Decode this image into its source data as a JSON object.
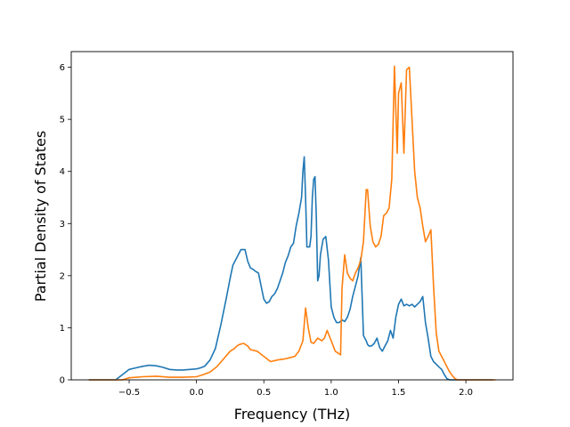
{
  "chart_data": {
    "type": "line",
    "title": "",
    "xlabel": "Frequency (THz)",
    "ylabel": "Partial Density of States",
    "xlim": [
      -0.93,
      2.35
    ],
    "ylim": [
      0,
      6.3
    ],
    "x_ticks": [
      -0.5,
      0.0,
      0.5,
      1.0,
      1.5,
      2.0
    ],
    "x_tick_labels": [
      "−0.5",
      "0.0",
      "0.5",
      "1.0",
      "1.5",
      "2.0"
    ],
    "y_ticks": [
      0,
      1,
      2,
      3,
      4,
      5,
      6
    ],
    "y_tick_labels": [
      "0",
      "1",
      "2",
      "3",
      "4",
      "5",
      "6"
    ],
    "grid": false,
    "legend": "none",
    "series": [
      {
        "color": "#1f77b4",
        "x": [
          -0.8,
          -0.6,
          -0.55,
          -0.5,
          -0.45,
          -0.4,
          -0.35,
          -0.3,
          -0.25,
          -0.2,
          -0.15,
          -0.1,
          -0.05,
          0.0,
          0.03,
          0.06,
          0.1,
          0.14,
          0.18,
          0.22,
          0.25,
          0.27,
          0.3,
          0.33,
          0.36,
          0.38,
          0.4,
          0.42,
          0.44,
          0.46,
          0.48,
          0.5,
          0.52,
          0.54,
          0.56,
          0.58,
          0.6,
          0.62,
          0.64,
          0.66,
          0.68,
          0.7,
          0.72,
          0.74,
          0.76,
          0.78,
          0.79,
          0.8,
          0.81,
          0.82,
          0.84,
          0.85,
          0.86,
          0.87,
          0.88,
          0.89,
          0.9,
          0.91,
          0.92,
          0.94,
          0.96,
          0.98,
          1.0,
          1.02,
          1.04,
          1.06,
          1.08,
          1.1,
          1.12,
          1.14,
          1.16,
          1.18,
          1.2,
          1.22,
          1.24,
          1.26,
          1.27,
          1.28,
          1.3,
          1.32,
          1.34,
          1.36,
          1.38,
          1.4,
          1.42,
          1.44,
          1.46,
          1.48,
          1.5,
          1.52,
          1.54,
          1.56,
          1.58,
          1.6,
          1.62,
          1.64,
          1.66,
          1.68,
          1.7,
          1.72,
          1.74,
          1.76,
          1.78,
          1.8,
          1.82,
          1.84,
          1.86,
          1.88,
          1.9,
          1.92,
          1.94,
          1.96,
          2.2
        ],
        "y": [
          0,
          0,
          0.1,
          0.2,
          0.23,
          0.26,
          0.28,
          0.27,
          0.24,
          0.2,
          0.19,
          0.19,
          0.2,
          0.21,
          0.23,
          0.26,
          0.38,
          0.6,
          1.05,
          1.55,
          1.95,
          2.2,
          2.35,
          2.5,
          2.5,
          2.28,
          2.15,
          2.12,
          2.08,
          2.05,
          1.8,
          1.55,
          1.47,
          1.5,
          1.6,
          1.65,
          1.75,
          1.9,
          2.05,
          2.25,
          2.38,
          2.55,
          2.62,
          2.95,
          3.2,
          3.5,
          4.0,
          4.28,
          3.5,
          2.55,
          2.55,
          2.75,
          3.5,
          3.85,
          3.9,
          3.1,
          1.9,
          2.0,
          2.4,
          2.7,
          2.75,
          2.3,
          1.4,
          1.2,
          1.1,
          1.1,
          1.15,
          1.12,
          1.2,
          1.35,
          1.6,
          1.8,
          2.0,
          2.35,
          0.85,
          0.75,
          0.68,
          0.65,
          0.65,
          0.7,
          0.8,
          0.62,
          0.55,
          0.65,
          0.75,
          0.95,
          0.8,
          1.2,
          1.45,
          1.55,
          1.42,
          1.45,
          1.42,
          1.45,
          1.4,
          1.45,
          1.5,
          1.6,
          1.1,
          0.8,
          0.45,
          0.35,
          0.3,
          0.25,
          0.2,
          0.1,
          0.02,
          0,
          0,
          0,
          0,
          0,
          0
        ],
        "x_override": true
      },
      {
        "color": "#ff7f0e",
        "x": [
          -0.8,
          -0.55,
          -0.5,
          -0.4,
          -0.3,
          -0.2,
          -0.1,
          0.0,
          0.05,
          0.1,
          0.15,
          0.2,
          0.25,
          0.28,
          0.3,
          0.32,
          0.35,
          0.38,
          0.4,
          0.45,
          0.5,
          0.55,
          0.6,
          0.65,
          0.7,
          0.73,
          0.76,
          0.79,
          0.81,
          0.83,
          0.85,
          0.87,
          0.9,
          0.93,
          0.95,
          0.97,
          1.0,
          1.03,
          1.07,
          1.08,
          1.1,
          1.12,
          1.14,
          1.16,
          1.18,
          1.2,
          1.22,
          1.24,
          1.26,
          1.27,
          1.29,
          1.31,
          1.33,
          1.35,
          1.37,
          1.39,
          1.41,
          1.43,
          1.45,
          1.47,
          1.49,
          1.5,
          1.52,
          1.54,
          1.56,
          1.58,
          1.6,
          1.62,
          1.64,
          1.66,
          1.68,
          1.7,
          1.72,
          1.74,
          1.76,
          1.78,
          1.8,
          1.82,
          1.84,
          1.86,
          1.88,
          1.9,
          1.92,
          1.94,
          1.96,
          1.98,
          2.0,
          2.22
        ],
        "y": [
          0,
          0,
          0.04,
          0.06,
          0.07,
          0.05,
          0.05,
          0.06,
          0.1,
          0.15,
          0.25,
          0.4,
          0.55,
          0.6,
          0.65,
          0.68,
          0.7,
          0.65,
          0.58,
          0.55,
          0.45,
          0.35,
          0.38,
          0.4,
          0.43,
          0.45,
          0.55,
          0.75,
          1.38,
          1.0,
          0.72,
          0.7,
          0.8,
          0.75,
          0.8,
          0.95,
          0.75,
          0.55,
          0.48,
          1.75,
          2.4,
          2.05,
          1.95,
          1.9,
          2.05,
          2.15,
          2.3,
          2.65,
          3.65,
          3.65,
          2.95,
          2.65,
          2.55,
          2.6,
          2.75,
          3.15,
          3.2,
          3.3,
          3.85,
          6.02,
          4.35,
          5.5,
          5.7,
          4.35,
          5.95,
          6.0,
          5.0,
          4.0,
          3.5,
          3.3,
          2.95,
          2.65,
          2.75,
          2.88,
          1.8,
          0.9,
          0.55,
          0.45,
          0.35,
          0.25,
          0.15,
          0.08,
          0.02,
          0,
          0,
          0,
          0,
          0
        ]
      }
    ]
  }
}
